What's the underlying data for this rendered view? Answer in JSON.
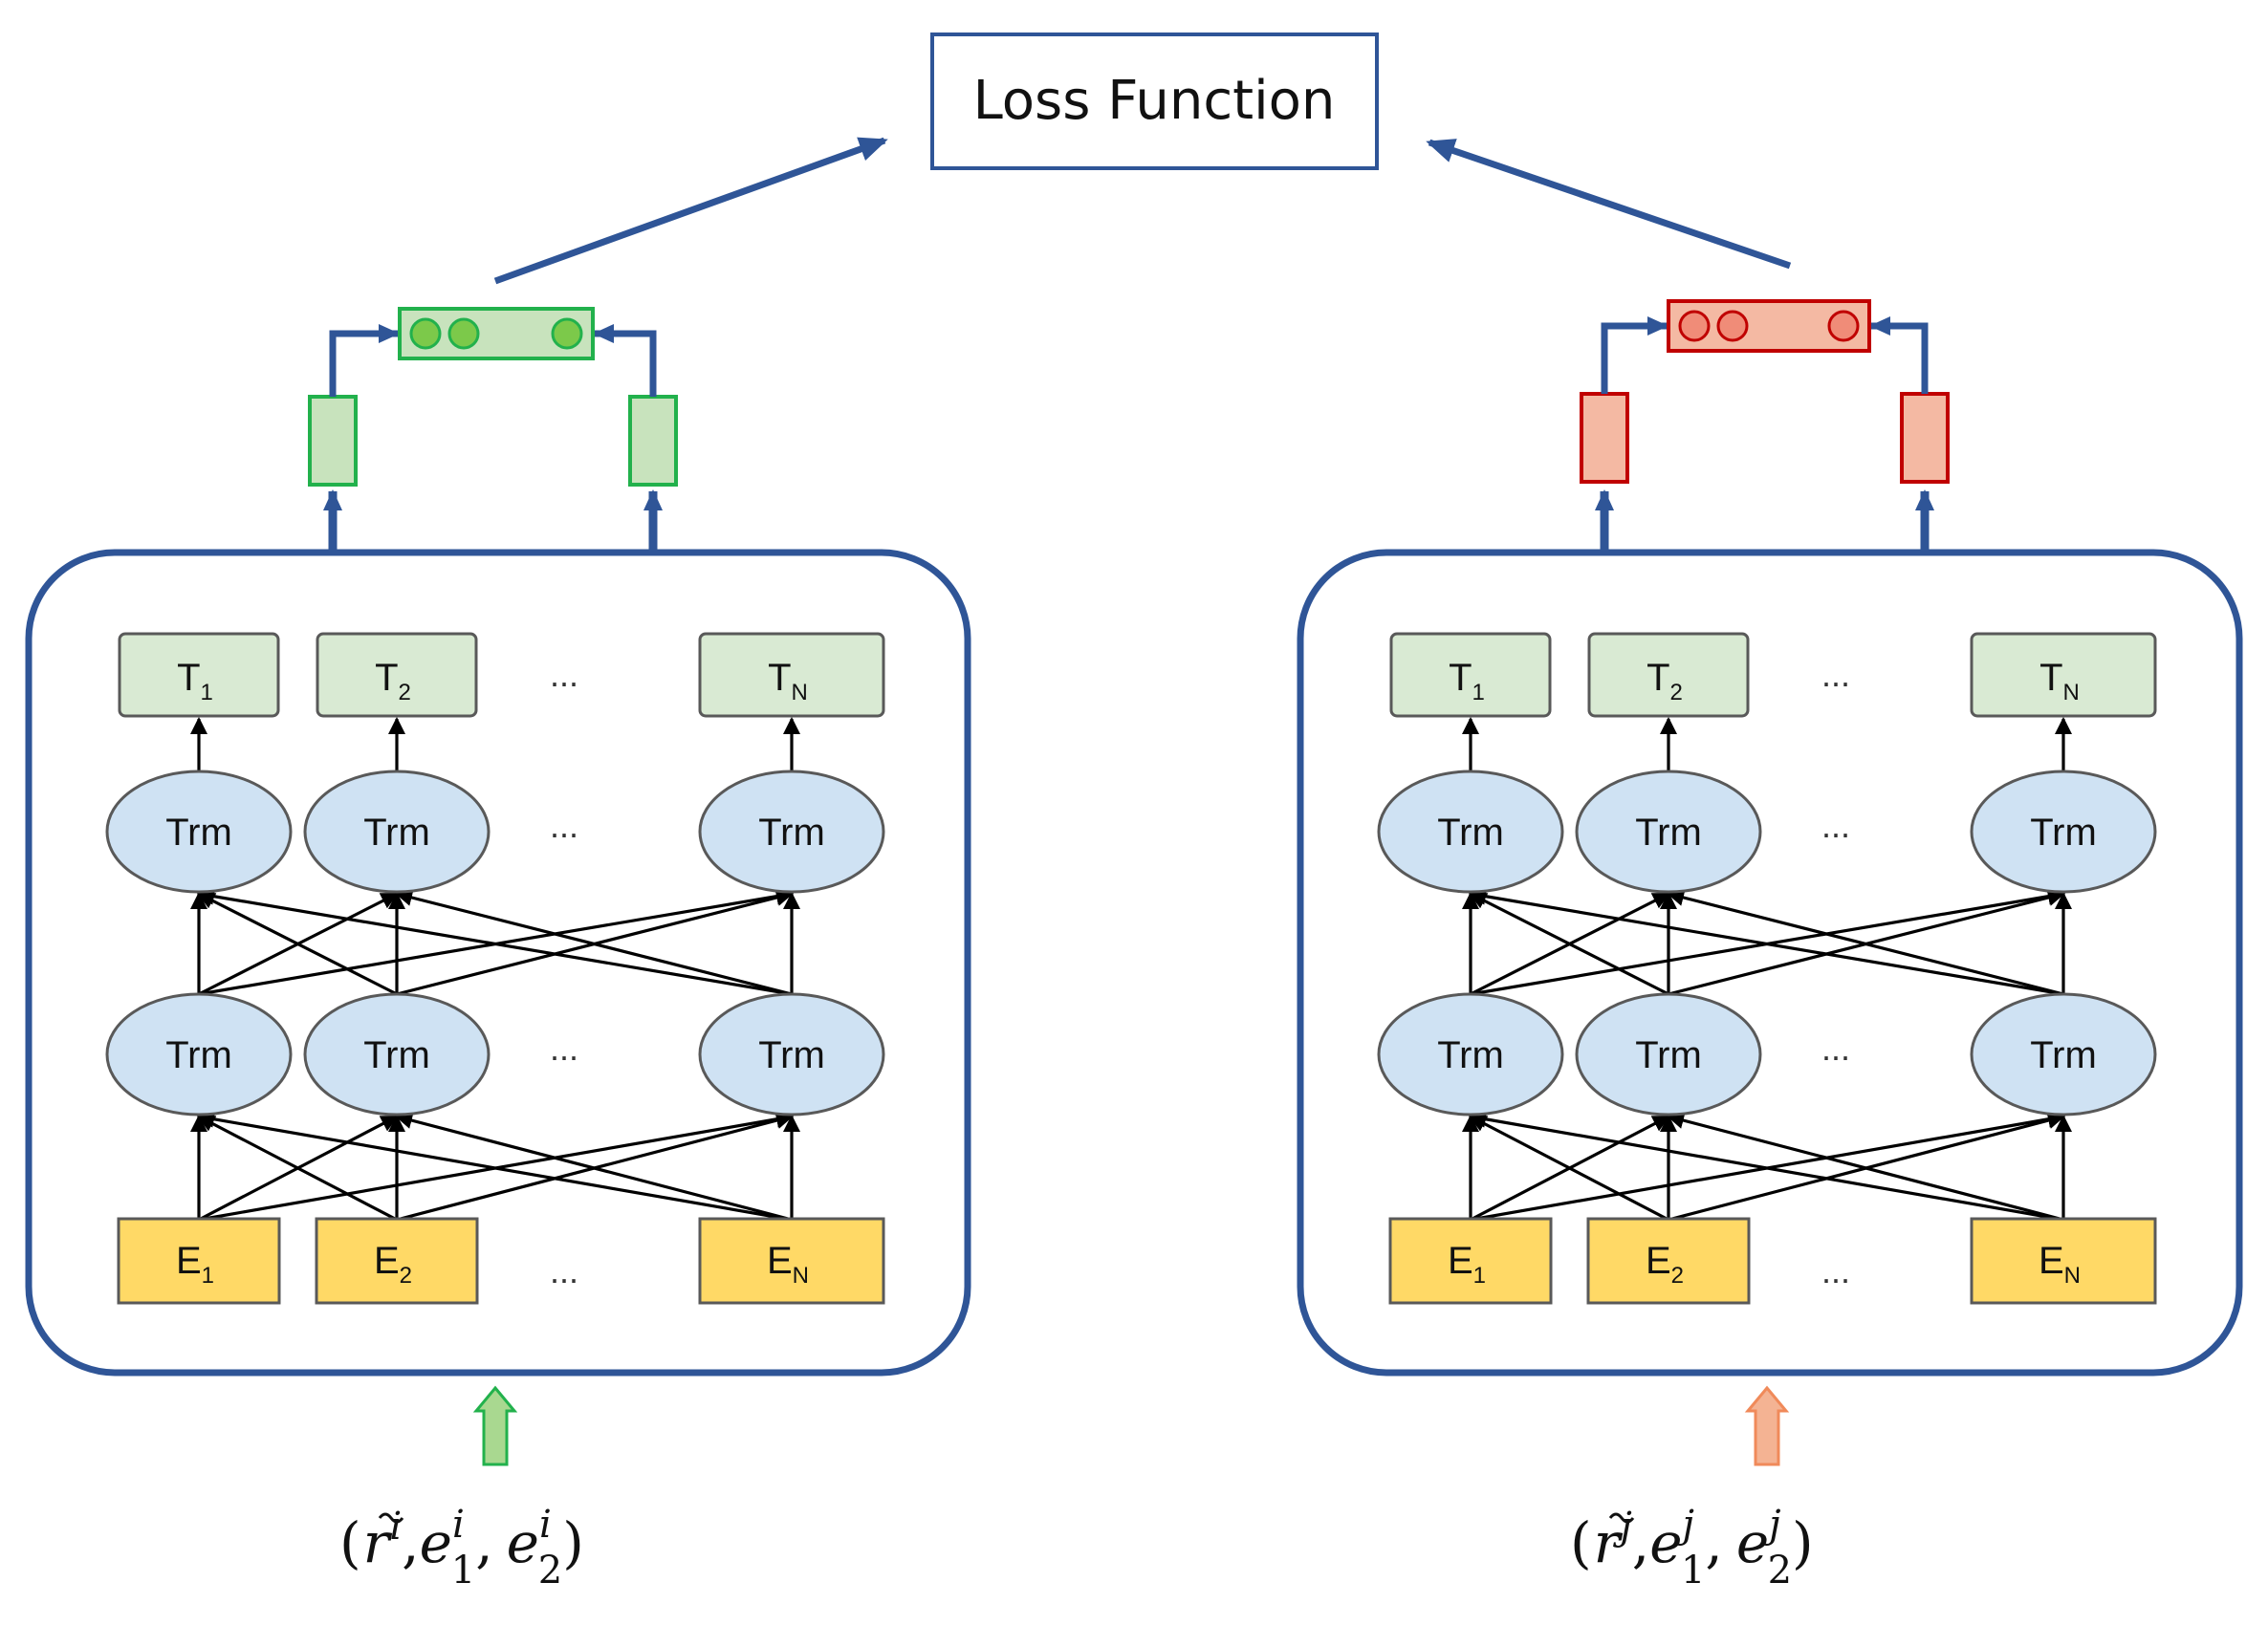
{
  "loss_box": {
    "label": "Loss Function"
  },
  "encoders": [
    {
      "id": "left",
      "accent": {
        "fill": "#c8e3bd",
        "stroke": "#22b14c",
        "dot": "#7cc94a",
        "arrow_fill": "#a9d890",
        "arrow_stroke": "#22b14c"
      },
      "t_nodes": [
        {
          "base": "T",
          "sub": "1"
        },
        {
          "base": "T",
          "sub": "2"
        },
        {
          "base": "T",
          "sub": "N"
        }
      ],
      "trm_label": "Trm",
      "e_nodes": [
        {
          "base": "E",
          "sub": "1"
        },
        {
          "base": "E",
          "sub": "2"
        },
        {
          "base": "E",
          "sub": "N"
        }
      ],
      "ellipsis": "...",
      "input": {
        "open": "(",
        "r": "r",
        "r_sup": "i",
        "sep1": ",",
        "e1": "e",
        "e1_sup": "i",
        "e1_sub": "1",
        "sep2": ",",
        "e2": "e",
        "e2_sup": "i",
        "e2_sub": "2",
        "close": ")"
      }
    },
    {
      "id": "right",
      "accent": {
        "fill": "#f4b9a3",
        "stroke": "#c00000",
        "dot": "#f08c78",
        "arrow_fill": "#f4b393",
        "arrow_stroke": "#f08a5a"
      },
      "t_nodes": [
        {
          "base": "T",
          "sub": "1"
        },
        {
          "base": "T",
          "sub": "2"
        },
        {
          "base": "T",
          "sub": "N"
        }
      ],
      "trm_label": "Trm",
      "e_nodes": [
        {
          "base": "E",
          "sub": "1"
        },
        {
          "base": "E",
          "sub": "2"
        },
        {
          "base": "E",
          "sub": "N"
        }
      ],
      "ellipsis": "...",
      "input": {
        "open": "(",
        "r": "r",
        "r_sup": "j",
        "sep1": ",",
        "e1": "e",
        "e1_sup": "j",
        "e1_sub": "1",
        "sep2": ",",
        "e2": "e",
        "e2_sup": "j",
        "e2_sub": "2",
        "close": ")"
      }
    }
  ],
  "colors": {
    "frame": "#2f5597",
    "t_fill": "#d9ead3",
    "trm_fill": "#cfe2f3",
    "e_fill": "#ffd966",
    "node_stroke": "#595959",
    "arrow": "#000000"
  }
}
